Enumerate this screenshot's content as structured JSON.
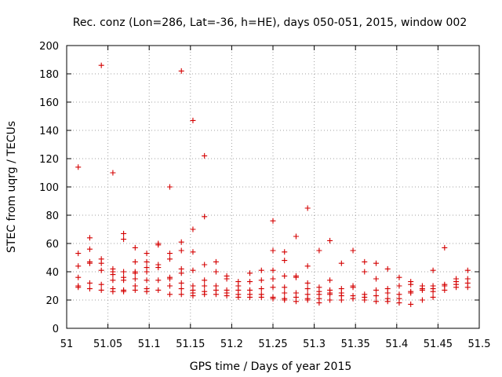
{
  "chart_data": {
    "type": "scatter",
    "title": "Rec. conz (Lon=286, Lat=-36, h=HE), days 050-051, 2015, window 002",
    "xlabel": "GPS time / Days of year 2015",
    "ylabel": "STEC from uqrg / TECUs",
    "xlim": [
      51,
      51.5
    ],
    "ylim": [
      0,
      200
    ],
    "x_ticks": [
      51,
      51.05,
      51.1,
      51.15,
      51.2,
      51.25,
      51.3,
      51.35,
      51.4,
      51.45,
      51.5
    ],
    "x_tick_labels": [
      "51",
      "51.05",
      "51.1",
      "51.15",
      "51.2",
      "51.25",
      "51.3",
      "51.35",
      "51.4",
      "51.45",
      "51.5"
    ],
    "y_ticks": [
      0,
      20,
      40,
      60,
      80,
      100,
      120,
      140,
      160,
      180,
      200
    ],
    "y_tick_labels": [
      "0",
      "20",
      "40",
      "60",
      "80",
      "100",
      "120",
      "140",
      "160",
      "180",
      "200"
    ],
    "grid": true,
    "marker": "+",
    "color": "#d40000",
    "series": [
      {
        "x": [
          51.014,
          51.014,
          51.014,
          51.014,
          51.014,
          51.014,
          51.028,
          51.028,
          51.028,
          51.028,
          51.028,
          51.028,
          51.042,
          51.042,
          51.042,
          51.042,
          51.042,
          51.042,
          51.056,
          51.056,
          51.056,
          51.056,
          51.056,
          51.056,
          51.056,
          51.069,
          51.069,
          51.069,
          51.069,
          51.069,
          51.069,
          51.069,
          51.083,
          51.083,
          51.083,
          51.083,
          51.083,
          51.083,
          51.083,
          51.097,
          51.097,
          51.097,
          51.097,
          51.097,
          51.097,
          51.097,
          51.111,
          51.111,
          51.111,
          51.111,
          51.111,
          51.111,
          51.125,
          51.125,
          51.125,
          51.125,
          51.125,
          51.125,
          51.125,
          51.139,
          51.139,
          51.139,
          51.139,
          51.139,
          51.139,
          51.139,
          51.139,
          51.153,
          51.153,
          51.153,
          51.153,
          51.153,
          51.153,
          51.153,
          51.153,
          51.167,
          51.167,
          51.167,
          51.167,
          51.167,
          51.167,
          51.167,
          51.181,
          51.181,
          51.181,
          51.181,
          51.181,
          51.194,
          51.194,
          51.194,
          51.194,
          51.194,
          51.208,
          51.208,
          51.208,
          51.208,
          51.208,
          51.222,
          51.222,
          51.222,
          51.222,
          51.222,
          51.236,
          51.236,
          51.236,
          51.236,
          51.236,
          51.25,
          51.25,
          51.25,
          51.25,
          51.25,
          51.25,
          51.25,
          51.264,
          51.264,
          51.264,
          51.264,
          51.264,
          51.264,
          51.264,
          51.278,
          51.278,
          51.278,
          51.278,
          51.278,
          51.278,
          51.292,
          51.292,
          51.292,
          51.292,
          51.292,
          51.292,
          51.292,
          51.306,
          51.306,
          51.306,
          51.306,
          51.306,
          51.306,
          51.319,
          51.319,
          51.319,
          51.319,
          51.319,
          51.319,
          51.333,
          51.333,
          51.333,
          51.333,
          51.333,
          51.347,
          51.347,
          51.347,
          51.347,
          51.347,
          51.361,
          51.361,
          51.361,
          51.361,
          51.361,
          51.375,
          51.375,
          51.375,
          51.375,
          51.375,
          51.389,
          51.389,
          51.389,
          51.389,
          51.389,
          51.403,
          51.403,
          51.403,
          51.403,
          51.403,
          51.417,
          51.417,
          51.417,
          51.417,
          51.417,
          51.431,
          51.431,
          51.431,
          51.431,
          51.444,
          51.444,
          51.444,
          51.444,
          51.444,
          51.458,
          51.458,
          51.458,
          51.458,
          51.472,
          51.472,
          51.472,
          51.472,
          51.486,
          51.486,
          51.486,
          51.486
        ],
        "y": [
          114,
          53,
          44,
          36,
          30,
          29,
          64,
          56,
          47,
          46,
          32,
          28,
          186,
          49,
          46,
          41,
          31,
          27,
          110,
          42,
          40,
          38,
          34,
          28,
          26,
          67,
          63,
          40,
          36,
          34,
          27,
          26,
          57,
          47,
          40,
          39,
          35,
          30,
          27,
          53,
          47,
          43,
          40,
          34,
          28,
          26,
          60,
          59,
          45,
          43,
          34,
          27,
          100,
          53,
          49,
          36,
          35,
          30,
          24,
          182,
          61,
          55,
          42,
          39,
          32,
          28,
          24,
          147,
          70,
          54,
          41,
          30,
          27,
          25,
          23,
          122,
          79,
          45,
          34,
          30,
          26,
          24,
          47,
          40,
          30,
          27,
          24,
          37,
          35,
          27,
          25,
          23,
          33,
          30,
          27,
          24,
          22,
          39,
          33,
          27,
          24,
          22,
          41,
          34,
          28,
          24,
          22,
          76,
          55,
          41,
          35,
          29,
          22,
          21,
          54,
          48,
          37,
          29,
          25,
          21,
          20,
          65,
          37,
          36,
          25,
          22,
          19,
          85,
          44,
          32,
          28,
          24,
          21,
          20,
          55,
          29,
          26,
          24,
          21,
          18,
          62,
          34,
          27,
          25,
          24,
          20,
          46,
          28,
          25,
          23,
          20,
          55,
          30,
          29,
          23,
          21,
          47,
          40,
          24,
          22,
          20,
          46,
          35,
          27,
          23,
          19,
          42,
          28,
          25,
          21,
          19,
          36,
          30,
          24,
          21,
          18,
          33,
          31,
          26,
          25,
          17,
          30,
          28,
          27,
          20,
          41,
          30,
          28,
          26,
          22,
          57,
          31,
          30,
          27,
          35,
          33,
          31,
          29,
          41,
          35,
          32,
          29
        ]
      }
    ]
  }
}
